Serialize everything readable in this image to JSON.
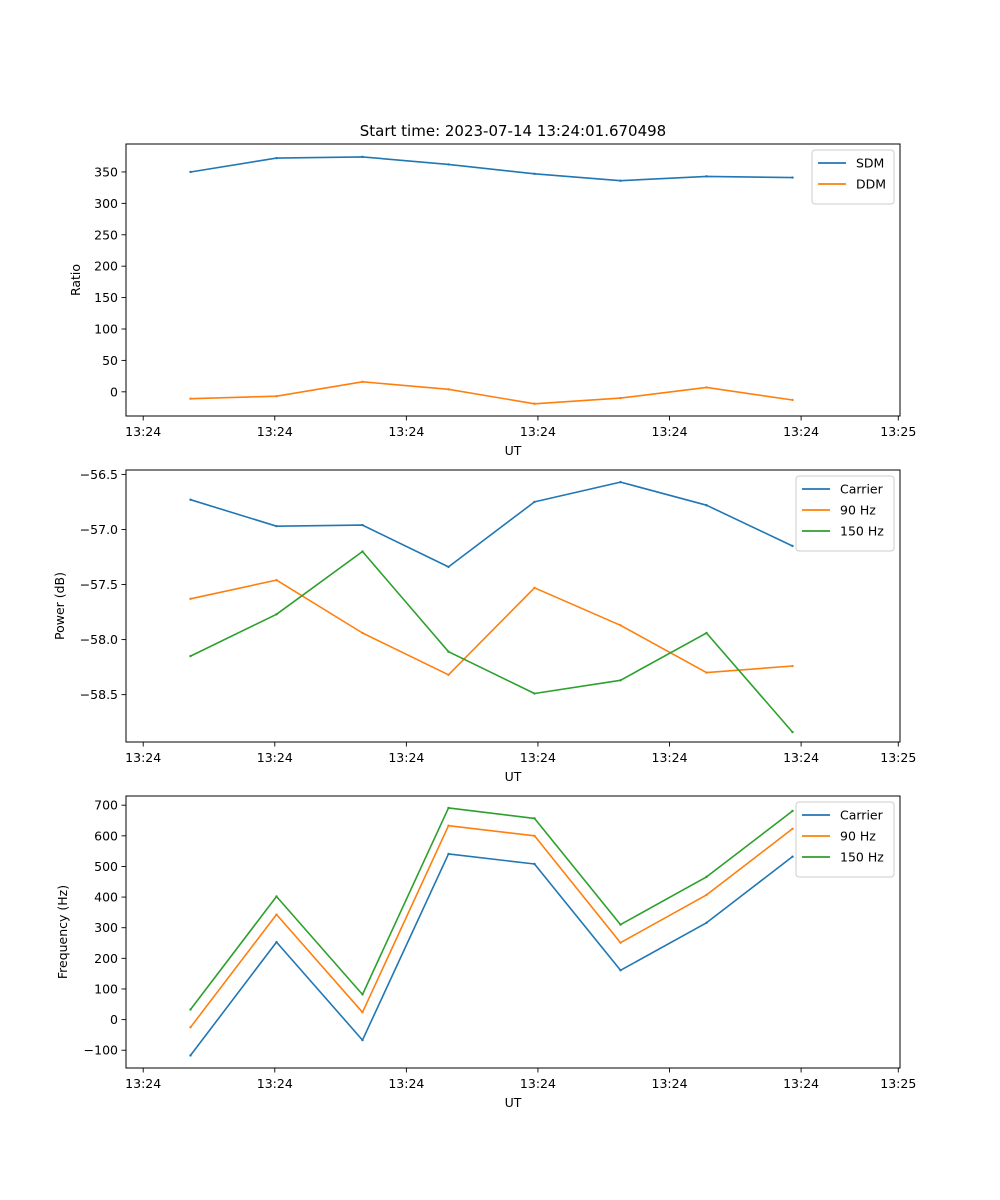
{
  "figure": {
    "title": "Start time: 2023-07-14 13:24:01.670498"
  },
  "colors": {
    "blue": "#1f77b4",
    "orange": "#ff7f0e",
    "green": "#2ca02c"
  },
  "chart_data": [
    {
      "type": "line",
      "title": "Start time: 2023-07-14 13:24:01.670498",
      "xlabel": "UT",
      "ylabel": "Ratio",
      "x": [
        1,
        2,
        3,
        4,
        5,
        6,
        7,
        8
      ],
      "xlim": [
        0.25,
        9.25
      ],
      "xticks": [
        0.45,
        1.98,
        3.51,
        5.04,
        6.57,
        8.1,
        9.23
      ],
      "xtick_labels": [
        "13:24",
        "13:24",
        "13:24",
        "13:24",
        "13:24",
        "13:24",
        "13:25"
      ],
      "ylim": [
        -38.5,
        394.5
      ],
      "yticks": [
        0,
        50,
        100,
        150,
        200,
        250,
        300,
        350
      ],
      "ytick_labels": [
        "0",
        "50",
        "100",
        "150",
        "200",
        "250",
        "300",
        "350"
      ],
      "legend_position": "top-right",
      "series": [
        {
          "name": "SDM",
          "color": "#1f77b4",
          "values": [
            350,
            372,
            374,
            362,
            347,
            336,
            343,
            341
          ]
        },
        {
          "name": "DDM",
          "color": "#ff7f0e",
          "values": [
            -11,
            -7,
            16,
            4,
            -19,
            -10,
            7,
            -13
          ]
        }
      ]
    },
    {
      "type": "line",
      "title": "",
      "xlabel": "UT",
      "ylabel": "Power (dB)",
      "x": [
        1,
        2,
        3,
        4,
        5,
        6,
        7,
        8
      ],
      "xlim": [
        0.25,
        9.25
      ],
      "xticks": [
        0.45,
        1.98,
        3.51,
        5.04,
        6.57,
        8.1,
        9.23
      ],
      "xtick_labels": [
        "13:24",
        "13:24",
        "13:24",
        "13:24",
        "13:24",
        "13:24",
        "13:25"
      ],
      "ylim": [
        -58.93,
        -56.46
      ],
      "yticks": [
        -58.5,
        -58.0,
        -57.5,
        -57.0,
        -56.5
      ],
      "ytick_labels": [
        "−58.5",
        "−58.0",
        "−57.5",
        "−57.0",
        "−56.5"
      ],
      "legend_position": "top-right",
      "series": [
        {
          "name": "Carrier",
          "color": "#1f77b4",
          "values": [
            -56.73,
            -56.97,
            -56.96,
            -57.34,
            -56.75,
            -56.57,
            -56.78,
            -57.15
          ]
        },
        {
          "name": "90 Hz",
          "color": "#ff7f0e",
          "values": [
            -57.63,
            -57.46,
            -57.94,
            -58.32,
            -57.53,
            -57.87,
            -58.3,
            -58.24
          ]
        },
        {
          "name": "150 Hz",
          "color": "#2ca02c",
          "values": [
            -58.15,
            -57.77,
            -57.2,
            -58.11,
            -58.49,
            -58.37,
            -57.94,
            -58.84
          ]
        }
      ]
    },
    {
      "type": "line",
      "title": "",
      "xlabel": "UT",
      "ylabel": "Frequency (Hz)",
      "x": [
        1,
        2,
        3,
        4,
        5,
        6,
        7,
        8
      ],
      "xlim": [
        0.25,
        9.25
      ],
      "xticks": [
        0.45,
        1.98,
        3.51,
        5.04,
        6.57,
        8.1,
        9.23
      ],
      "xtick_labels": [
        "13:24",
        "13:24",
        "13:24",
        "13:24",
        "13:24",
        "13:24",
        "13:25"
      ],
      "ylim": [
        -158,
        730
      ],
      "yticks": [
        -100,
        0,
        100,
        200,
        300,
        400,
        500,
        600,
        700
      ],
      "ytick_labels": [
        "−100",
        "0",
        "100",
        "200",
        "300",
        "400",
        "500",
        "600",
        "700"
      ],
      "legend_position": "top-right",
      "series": [
        {
          "name": "Carrier",
          "color": "#1f77b4",
          "values": [
            -117,
            253,
            -67,
            541,
            508,
            161,
            316,
            532
          ]
        },
        {
          "name": "90 Hz",
          "color": "#ff7f0e",
          "values": [
            -25,
            343,
            24,
            633,
            600,
            251,
            407,
            623
          ]
        },
        {
          "name": "150 Hz",
          "color": "#2ca02c",
          "values": [
            33,
            402,
            82,
            691,
            657,
            310,
            466,
            681
          ]
        }
      ]
    }
  ]
}
